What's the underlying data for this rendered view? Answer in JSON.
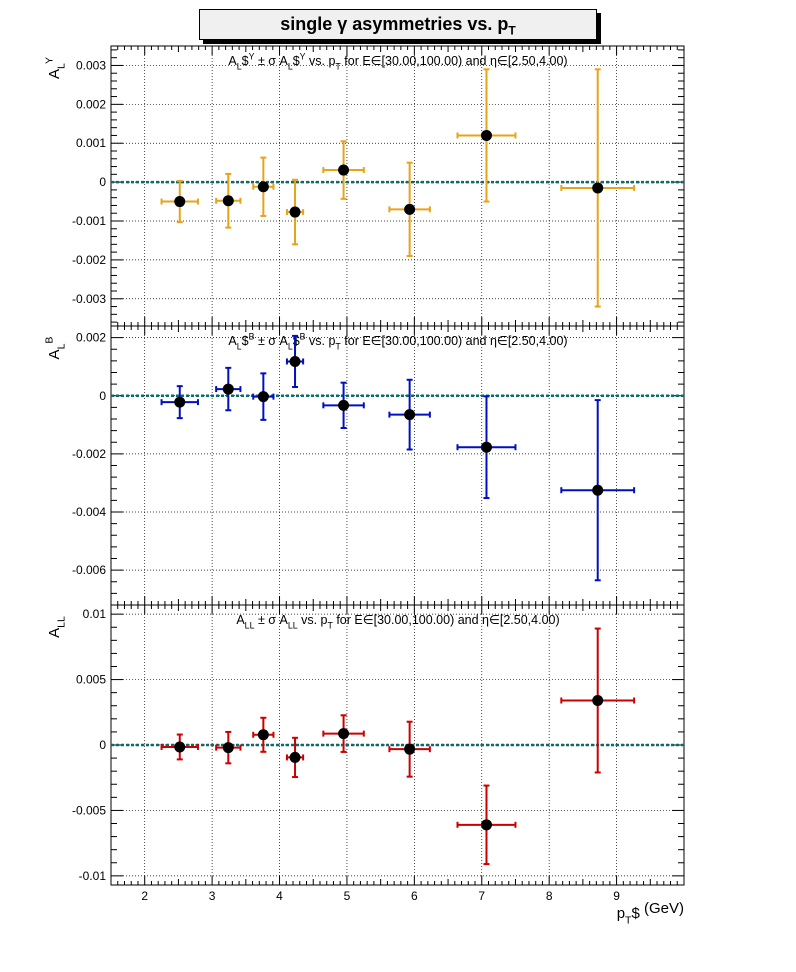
{
  "title": {
    "main": "single  γ asymmetries vs. p",
    "sub": "T"
  },
  "x_axis": {
    "label": "p",
    "label_sub": "T",
    "label_unit": " (GeV)"
  },
  "chart_data": [
    {
      "type": "scatter",
      "ylabel": "A",
      "ylabel_sub": "L",
      "ylabel_sup": "Y",
      "xlim": [
        1.5,
        10
      ],
      "ylim": [
        -0.0037,
        0.0035
      ],
      "yticks": [
        "0.003",
        "0.002",
        "0.001",
        "0",
        "-0.001",
        "-0.002",
        "-0.003"
      ],
      "ytick_values": [
        0.003,
        0.002,
        0.001,
        0,
        -0.001,
        -0.002,
        -0.003
      ],
      "color": "#e8a317",
      "grid": true,
      "annotation": "A$L$^Y ± σ A$L$^Y vs. p$T for E∈[30.00,100.00) and η∈[2.50,4.00)",
      "points": [
        {
          "x": 2.52,
          "y": -0.0005,
          "xerr": 0.27,
          "yerr": 0.00053
        },
        {
          "x": 3.24,
          "y": -0.00048,
          "xerr": 0.18,
          "yerr": 0.00069
        },
        {
          "x": 3.76,
          "y": -0.00012,
          "xerr": 0.15,
          "yerr": 0.00075
        },
        {
          "x": 4.23,
          "y": -0.00077,
          "xerr": 0.12,
          "yerr": 0.00083
        },
        {
          "x": 4.95,
          "y": 0.00031,
          "xerr": 0.3,
          "yerr": 0.00074
        },
        {
          "x": 5.93,
          "y": -0.0007,
          "xerr": 0.3,
          "yerr": 0.0012
        },
        {
          "x": 7.07,
          "y": 0.0012,
          "xerr": 0.43,
          "yerr": 0.0017
        },
        {
          "x": 8.72,
          "y": -0.00015,
          "xerr": 0.54,
          "yerr": 0.00305
        }
      ]
    },
    {
      "type": "scatter",
      "ylabel": "A",
      "ylabel_sub": "L",
      "ylabel_sup": "B",
      "xlim": [
        1.5,
        10
      ],
      "ylim": [
        -0.0072,
        0.0024
      ],
      "yticks": [
        "0.002",
        "0",
        "-0.002",
        "-0.004",
        "-0.006"
      ],
      "ytick_values": [
        0.002,
        0,
        -0.002,
        -0.004,
        -0.006
      ],
      "color": "#0010c0",
      "grid": true,
      "annotation": "A$L$^B ± σ A$L$^B vs. p$T for E∈[30.00,100.00) and η∈[2.50,4.00)",
      "points": [
        {
          "x": 2.52,
          "y": -0.00022,
          "xerr": 0.27,
          "yerr": 0.00055
        },
        {
          "x": 3.24,
          "y": 0.00023,
          "xerr": 0.18,
          "yerr": 0.00073
        },
        {
          "x": 3.76,
          "y": -3e-05,
          "xerr": 0.15,
          "yerr": 0.0008
        },
        {
          "x": 4.23,
          "y": 0.00118,
          "xerr": 0.12,
          "yerr": 0.00088
        },
        {
          "x": 4.95,
          "y": -0.00033,
          "xerr": 0.3,
          "yerr": 0.00078
        },
        {
          "x": 5.93,
          "y": -0.00065,
          "xerr": 0.3,
          "yerr": 0.0012
        },
        {
          "x": 7.07,
          "y": -0.00177,
          "xerr": 0.43,
          "yerr": 0.00175
        },
        {
          "x": 8.72,
          "y": -0.00325,
          "xerr": 0.54,
          "yerr": 0.0031
        }
      ]
    },
    {
      "type": "scatter",
      "ylabel": "A",
      "ylabel_sub": "LL",
      "ylabel_sup": "",
      "xlim": [
        1.5,
        10
      ],
      "ylim": [
        -0.0107,
        0.0107
      ],
      "yticks": [
        "0.01",
        "0.005",
        "0",
        "-0.005",
        "-0.01"
      ],
      "ytick_values": [
        0.01,
        0.005,
        0,
        -0.005,
        -0.01
      ],
      "xticks": [
        "2",
        "3",
        "4",
        "5",
        "6",
        "7",
        "8",
        "9"
      ],
      "xtick_values": [
        2,
        3,
        4,
        5,
        6,
        7,
        8,
        9
      ],
      "color": "#cc0000",
      "grid": true,
      "annotation": "A$LL ± σ A$LL vs. p$T for E∈[30.00,100.00) and η∈[2.50,4.00)",
      "points": [
        {
          "x": 2.52,
          "y": -0.00015,
          "xerr": 0.27,
          "yerr": 0.00095
        },
        {
          "x": 3.24,
          "y": -0.0002,
          "xerr": 0.18,
          "yerr": 0.0012
        },
        {
          "x": 3.76,
          "y": 0.00078,
          "xerr": 0.15,
          "yerr": 0.0013
        },
        {
          "x": 4.23,
          "y": -0.00095,
          "xerr": 0.12,
          "yerr": 0.0015
        },
        {
          "x": 4.95,
          "y": 0.00087,
          "xerr": 0.3,
          "yerr": 0.0014
        },
        {
          "x": 5.93,
          "y": -0.00032,
          "xerr": 0.3,
          "yerr": 0.0021
        },
        {
          "x": 7.07,
          "y": -0.0061,
          "xerr": 0.43,
          "yerr": 0.003
        },
        {
          "x": 8.72,
          "y": 0.0034,
          "xerr": 0.54,
          "yerr": 0.0055
        }
      ]
    }
  ]
}
